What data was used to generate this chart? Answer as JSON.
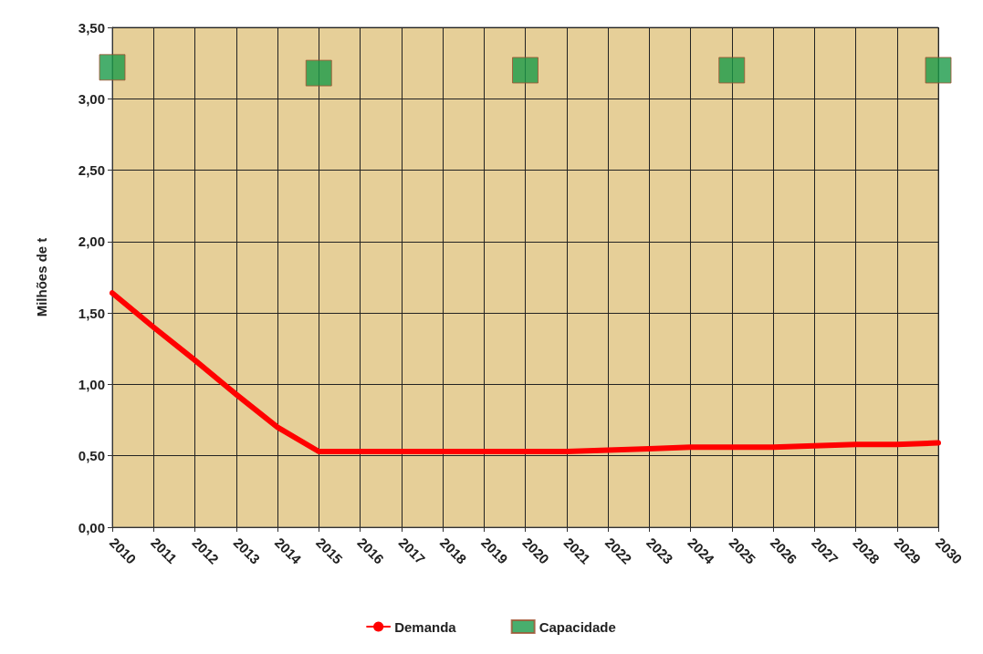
{
  "chart_data": {
    "type": "line",
    "ylabel": "Milhões de t",
    "categories": [
      "2010",
      "2011",
      "2012",
      "2013",
      "2014",
      "2015",
      "2016",
      "2017",
      "2018",
      "2019",
      "2020",
      "2021",
      "2022",
      "2023",
      "2024",
      "2025",
      "2026",
      "2027",
      "2028",
      "2029",
      "2030"
    ],
    "series": [
      {
        "name": "Demanda",
        "color": "#ff0000",
        "marker": "none",
        "values": [
          1.64,
          1.4,
          1.17,
          0.93,
          0.7,
          0.53,
          0.53,
          0.53,
          0.53,
          0.53,
          0.53,
          0.53,
          0.54,
          0.55,
          0.56,
          0.56,
          0.56,
          0.57,
          0.58,
          0.58,
          0.59
        ]
      },
      {
        "name": "Capacidade",
        "type": "scatter",
        "color": "#1a9a48",
        "marker": "square",
        "values": [
          3.22,
          null,
          null,
          null,
          null,
          3.18,
          null,
          null,
          null,
          null,
          3.2,
          null,
          null,
          null,
          null,
          3.2,
          null,
          null,
          null,
          null,
          3.2
        ]
      }
    ],
    "ylim": [
      0,
      3.5
    ],
    "yticks": [
      {
        "value": 0,
        "label": "0,00"
      },
      {
        "value": 0.5,
        "label": "0,50"
      },
      {
        "value": 1,
        "label": "1,00"
      },
      {
        "value": 1.5,
        "label": "1,50"
      },
      {
        "value": 2,
        "label": "2,00"
      },
      {
        "value": 2.5,
        "label": "2,50"
      },
      {
        "value": 3,
        "label": "3,00"
      },
      {
        "value": 3.5,
        "label": "3,50"
      }
    ],
    "grid": true,
    "legend": "bottom"
  }
}
